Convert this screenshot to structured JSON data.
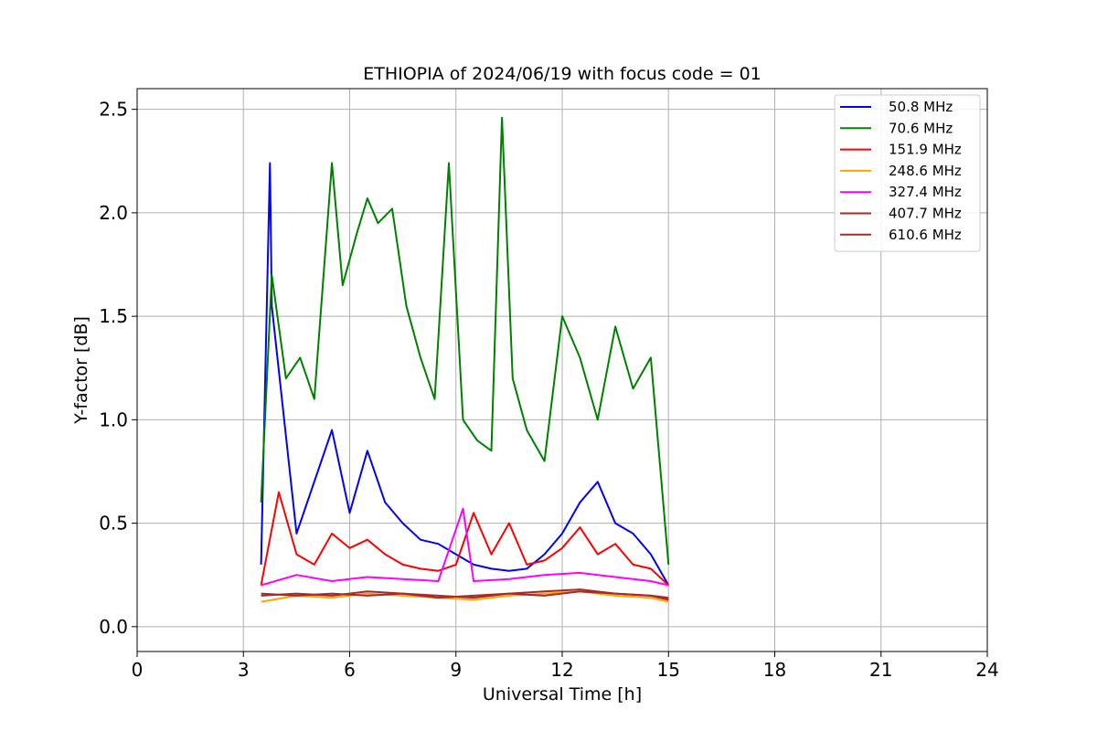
{
  "chart_data": {
    "type": "line",
    "title": "ETHIOPIA of 2024/06/19 with focus code = 01",
    "xlabel": "Universal Time [h]",
    "ylabel": "Y-factor [dB]",
    "xlim": [
      0,
      24
    ],
    "ylim": [
      -0.12,
      2.6
    ],
    "xticks": [
      0,
      3,
      6,
      9,
      12,
      15,
      18,
      21,
      24
    ],
    "yticks": [
      0.0,
      0.5,
      1.0,
      1.5,
      2.0,
      2.5
    ],
    "xtick_labels": [
      "0",
      "3",
      "6",
      "9",
      "12",
      "15",
      "18",
      "21",
      "24"
    ],
    "ytick_labels": [
      "0.0",
      "0.5",
      "1.0",
      "1.5",
      "2.0",
      "2.5"
    ],
    "grid": true,
    "legend_position": "top-right",
    "series": [
      {
        "name": "50.8 MHz",
        "color": "#0000ff",
        "x": [
          3.5,
          3.75,
          3.8,
          4.5,
          5.5,
          6.0,
          6.5,
          7.0,
          7.5,
          8.0,
          8.5,
          9.0,
          9.5,
          10.0,
          10.5,
          11.0,
          11.5,
          12.0,
          12.5,
          13.0,
          13.5,
          14.0,
          14.5,
          15.0
        ],
        "values": [
          0.3,
          2.24,
          1.55,
          0.45,
          0.95,
          0.55,
          0.85,
          0.6,
          0.5,
          0.42,
          0.4,
          0.35,
          0.3,
          0.28,
          0.27,
          0.28,
          0.35,
          0.45,
          0.6,
          0.7,
          0.5,
          0.45,
          0.35,
          0.2
        ]
      },
      {
        "name": "70.6 MHz",
        "color": "#008000",
        "x": [
          3.5,
          3.8,
          4.2,
          4.6,
          5.0,
          5.5,
          5.8,
          6.2,
          6.5,
          6.8,
          7.2,
          7.6,
          8.0,
          8.4,
          8.8,
          9.2,
          9.6,
          10.0,
          10.3,
          10.6,
          11.0,
          11.5,
          12.0,
          12.5,
          13.0,
          13.5,
          14.0,
          14.5,
          15.0
        ],
        "values": [
          0.6,
          1.7,
          1.2,
          1.3,
          1.1,
          2.24,
          1.65,
          1.9,
          2.07,
          1.95,
          2.02,
          1.55,
          1.3,
          1.1,
          2.24,
          1.0,
          0.9,
          0.85,
          2.46,
          1.2,
          0.95,
          0.8,
          1.5,
          1.3,
          1.0,
          1.45,
          1.15,
          1.3,
          0.3
        ]
      },
      {
        "name": "151.9 MHz",
        "color": "#ff0000",
        "x": [
          3.5,
          4.0,
          4.5,
          5.0,
          5.5,
          6.0,
          6.5,
          7.0,
          7.5,
          8.0,
          8.5,
          9.0,
          9.5,
          10.0,
          10.5,
          11.0,
          11.5,
          12.0,
          12.5,
          13.0,
          13.5,
          14.0,
          14.5,
          15.0
        ],
        "values": [
          0.2,
          0.65,
          0.35,
          0.3,
          0.45,
          0.38,
          0.42,
          0.35,
          0.3,
          0.28,
          0.27,
          0.3,
          0.55,
          0.35,
          0.5,
          0.3,
          0.32,
          0.38,
          0.48,
          0.35,
          0.4,
          0.3,
          0.28,
          0.2
        ]
      },
      {
        "name": "248.6 MHz",
        "color": "#ffa500",
        "x": [
          3.5,
          4.5,
          5.5,
          6.5,
          7.5,
          8.5,
          9.5,
          10.5,
          11.5,
          12.5,
          13.5,
          14.5,
          15.0
        ],
        "values": [
          0.12,
          0.15,
          0.14,
          0.16,
          0.15,
          0.14,
          0.13,
          0.15,
          0.16,
          0.17,
          0.15,
          0.14,
          0.12
        ]
      },
      {
        "name": "327.4 MHz",
        "color": "#ff00ff",
        "x": [
          3.5,
          4.5,
          5.5,
          6.5,
          7.5,
          8.5,
          9.2,
          9.5,
          10.5,
          11.5,
          12.5,
          13.5,
          14.5,
          15.0
        ],
        "values": [
          0.2,
          0.25,
          0.22,
          0.24,
          0.23,
          0.22,
          0.57,
          0.22,
          0.23,
          0.25,
          0.26,
          0.24,
          0.22,
          0.2
        ]
      },
      {
        "name": "407.7 MHz",
        "color": "#a52a2a",
        "x": [
          3.5,
          4.5,
          5.5,
          6.5,
          7.5,
          8.5,
          9.5,
          10.5,
          11.5,
          12.5,
          13.5,
          14.5,
          15.0
        ],
        "values": [
          0.15,
          0.16,
          0.15,
          0.17,
          0.16,
          0.15,
          0.14,
          0.16,
          0.17,
          0.18,
          0.16,
          0.15,
          0.14
        ]
      },
      {
        "name": "610.6 MHz",
        "color": "#a52a2a",
        "x": [
          3.5,
          4.5,
          5.5,
          6.5,
          7.5,
          8.5,
          9.5,
          10.5,
          11.5,
          12.5,
          13.5,
          14.5,
          15.0
        ],
        "values": [
          0.16,
          0.15,
          0.16,
          0.15,
          0.16,
          0.14,
          0.15,
          0.16,
          0.15,
          0.17,
          0.16,
          0.15,
          0.13
        ]
      }
    ]
  }
}
